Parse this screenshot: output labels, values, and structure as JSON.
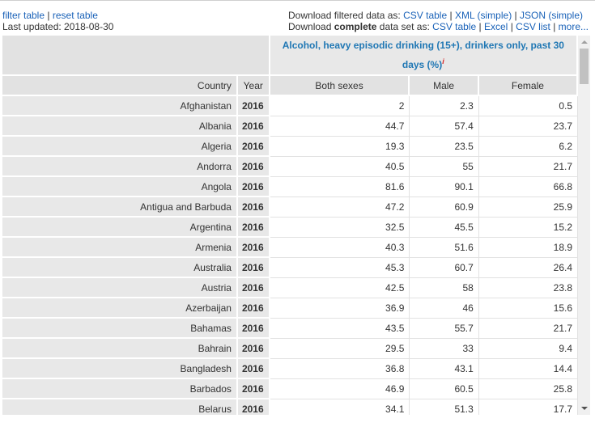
{
  "links": {
    "filter_table": "filter table",
    "reset_table": "reset table",
    "last_updated": "Last updated: 2018-08-30",
    "download_filtered_label": "Download filtered data as:",
    "download_complete_prefix": "Download",
    "download_complete_bold": "complete",
    "download_complete_suffix": "data set as:",
    "csv_table": "CSV table",
    "xml_simple": "XML (simple)",
    "json_simple": "JSON (simple)",
    "excel": "Excel",
    "csv_list": "CSV list",
    "more": "more...",
    "separator": "|"
  },
  "indicator": {
    "title": "Alcohol, heavy episodic drinking (15+), drinkers only, past 30 days (%)",
    "info_mark": "i"
  },
  "columns": {
    "country": "Country",
    "year": "Year",
    "both": "Both sexes",
    "male": "Male",
    "female": "Female"
  },
  "rows": [
    {
      "country": "Afghanistan",
      "year": "2016",
      "both": "2",
      "male": "2.3",
      "female": "0.5"
    },
    {
      "country": "Albania",
      "year": "2016",
      "both": "44.7",
      "male": "57.4",
      "female": "23.7"
    },
    {
      "country": "Algeria",
      "year": "2016",
      "both": "19.3",
      "male": "23.5",
      "female": "6.2"
    },
    {
      "country": "Andorra",
      "year": "2016",
      "both": "40.5",
      "male": "55",
      "female": "21.7"
    },
    {
      "country": "Angola",
      "year": "2016",
      "both": "81.6",
      "male": "90.1",
      "female": "66.8"
    },
    {
      "country": "Antigua and Barbuda",
      "year": "2016",
      "both": "47.2",
      "male": "60.9",
      "female": "25.9"
    },
    {
      "country": "Argentina",
      "year": "2016",
      "both": "32.5",
      "male": "45.5",
      "female": "15.2"
    },
    {
      "country": "Armenia",
      "year": "2016",
      "both": "40.3",
      "male": "51.6",
      "female": "18.9"
    },
    {
      "country": "Australia",
      "year": "2016",
      "both": "45.3",
      "male": "60.7",
      "female": "26.4"
    },
    {
      "country": "Austria",
      "year": "2016",
      "both": "42.5",
      "male": "58",
      "female": "23.8"
    },
    {
      "country": "Azerbaijan",
      "year": "2016",
      "both": "36.9",
      "male": "46",
      "female": "15.6"
    },
    {
      "country": "Bahamas",
      "year": "2016",
      "both": "43.5",
      "male": "55.7",
      "female": "21.7"
    },
    {
      "country": "Bahrain",
      "year": "2016",
      "both": "29.5",
      "male": "33",
      "female": "9.4"
    },
    {
      "country": "Bangladesh",
      "year": "2016",
      "both": "36.8",
      "male": "43.1",
      "female": "14.4"
    },
    {
      "country": "Barbados",
      "year": "2016",
      "both": "46.9",
      "male": "60.5",
      "female": "25.8"
    },
    {
      "country": "Belarus",
      "year": "2016",
      "both": "34.1",
      "male": "51.3",
      "female": "17.7"
    }
  ],
  "colors": {
    "link": "#1a62b8",
    "indicator_title": "#1f77b4",
    "info_mark": "#d62728",
    "header_bg": "#e2e2e2",
    "label_bg": "#e8e8e8"
  }
}
